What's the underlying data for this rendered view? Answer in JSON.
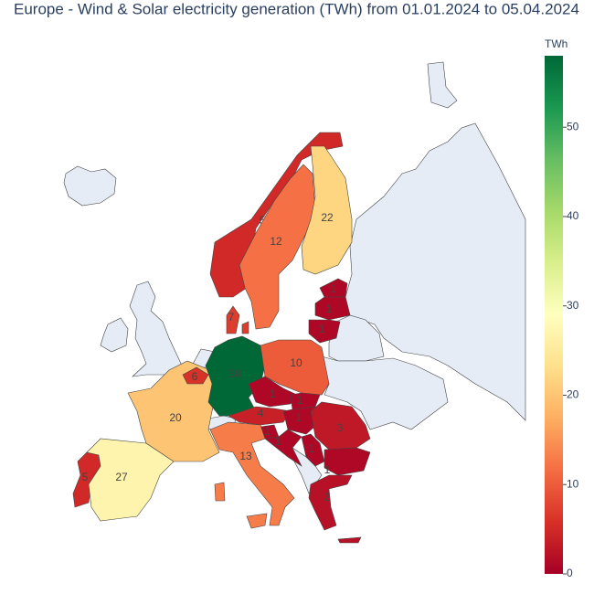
{
  "chart_data": {
    "type": "choropleth",
    "title": "Europe - Wind & Solar electricity generation (TWh) from 01.01.2024 to 05.04.2024",
    "colorbar_title": "TWh",
    "values": [
      5,
      27,
      20,
      6,
      58,
      7,
      10,
      1,
      4,
      1,
      1,
      1,
      1,
      1,
      3,
      1,
      2,
      13,
      5,
      12,
      22,
      1,
      1,
      1
    ],
    "zlim": [
      0,
      58
    ],
    "zticks": [
      0,
      10,
      20,
      30,
      40,
      50
    ],
    "colorscale": [
      "#a50026",
      "#d73027",
      "#f46d43",
      "#fdae61",
      "#fee08b",
      "#ffffbf",
      "#d9ef8b",
      "#a6d96a",
      "#66bd63",
      "#1a9850",
      "#006837"
    ]
  }
}
